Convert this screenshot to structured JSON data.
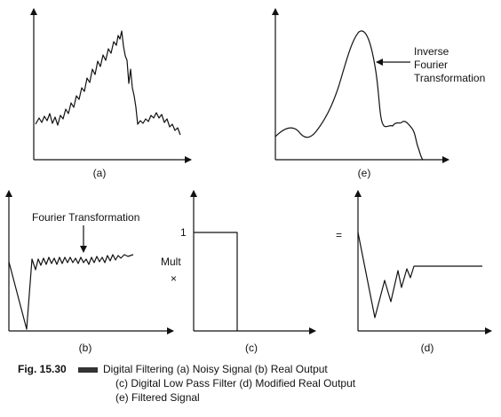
{
  "panels": {
    "a": {
      "label": "(a)"
    },
    "e": {
      "label": "(e)",
      "annotation": [
        "Inverse",
        "Fourier",
        "Transformation"
      ]
    },
    "b": {
      "label": "(b)",
      "annotation": "Fourier Transformation"
    },
    "c": {
      "label": "(c)",
      "level_label": "1",
      "side_label": "Mult",
      "side_symbol": "×"
    },
    "d": {
      "label": "(d)",
      "equals": "="
    }
  },
  "caption": {
    "number": "Fig. 15.30",
    "lines": [
      "Digital Filtering (a) Noisy Signal (b) Real Output",
      "(c) Digital Low Pass Filter (d) Modified Real Output",
      "(e) Filtered Signal"
    ]
  }
}
